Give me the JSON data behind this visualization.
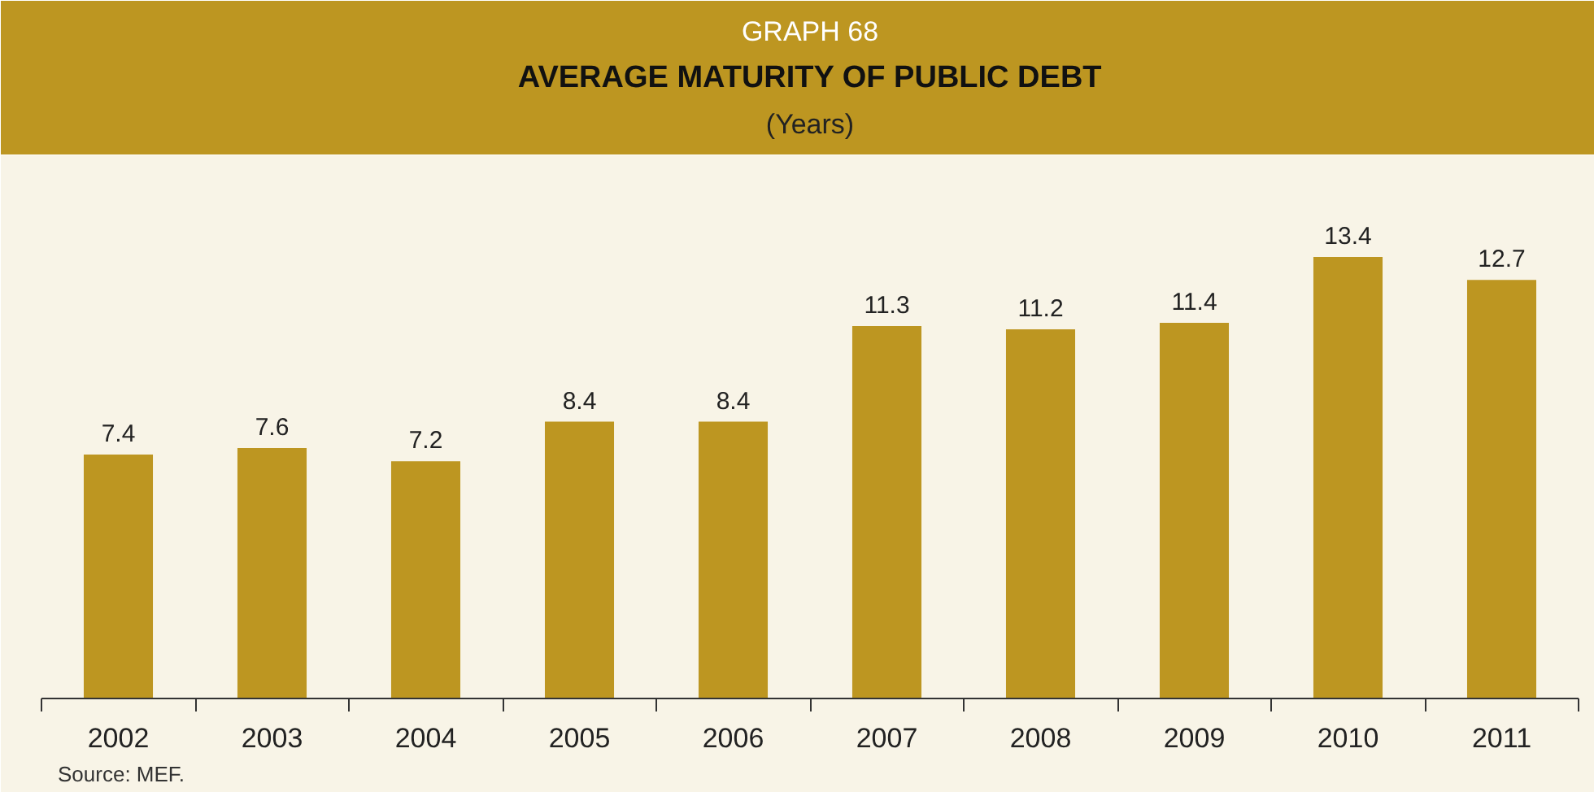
{
  "chart_data": {
    "type": "bar",
    "title": "AVERAGE MATURITY OF PUBLIC DEBT",
    "subtitle": "(Years)",
    "annotations": [
      "GRAPH 68",
      "Source: MEF."
    ],
    "categories": [
      "2002",
      "2003",
      "2004",
      "2005",
      "2006",
      "2007",
      "2008",
      "2009",
      "2010",
      "2011"
    ],
    "values": [
      7.4,
      7.6,
      7.2,
      8.4,
      8.4,
      11.3,
      11.2,
      11.4,
      13.4,
      12.7
    ],
    "color": "#bd9621",
    "data_labels": true,
    "grid": false
  }
}
